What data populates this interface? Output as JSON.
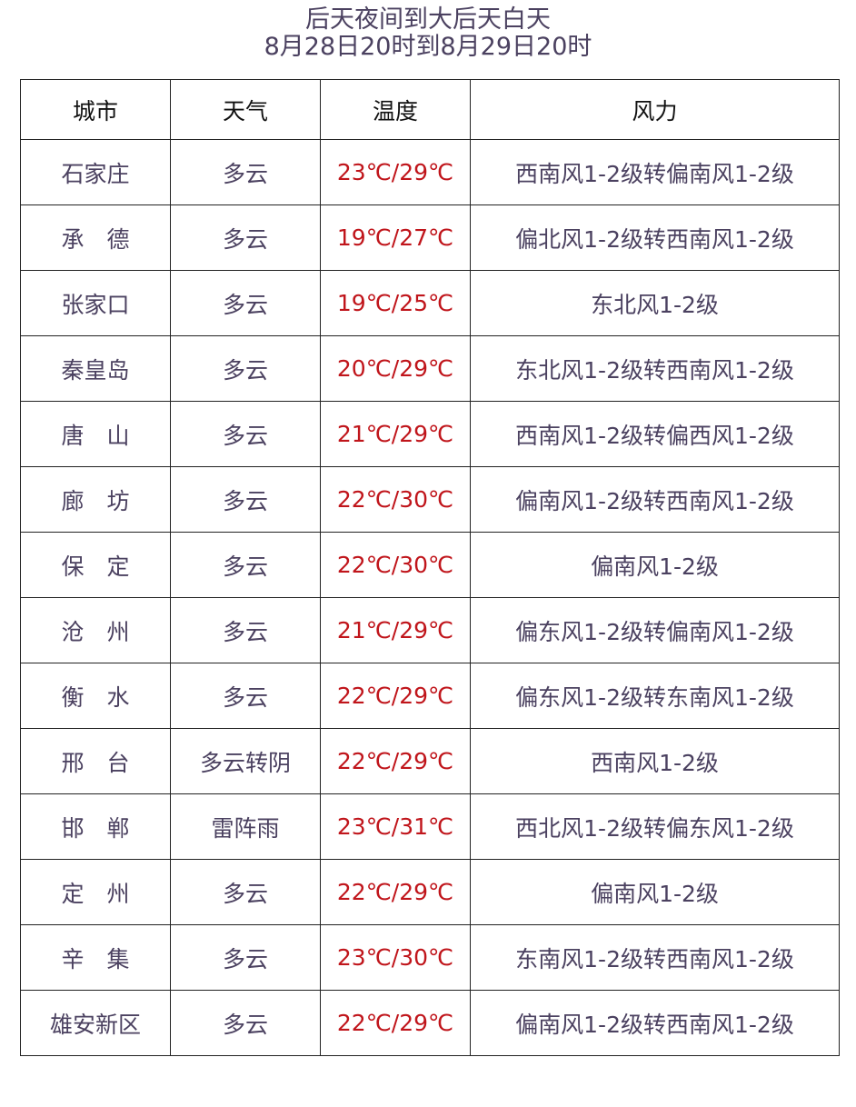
{
  "title": "后天夜间到大后天白天",
  "subtitle": "8月28日20时到8月29日20时",
  "colors": {
    "text": "#4b4160",
    "temperature": "#c0151b",
    "header": "#111111"
  },
  "table": {
    "headers": [
      "城市",
      "天气",
      "温度",
      "风力"
    ],
    "rows": [
      [
        "石家庄",
        "多云",
        "23℃/29℃",
        "西南风1-2级转偏南风1-2级"
      ],
      [
        "承　德",
        "多云",
        "19℃/27℃",
        "偏北风1-2级转西南风1-2级"
      ],
      [
        "张家口",
        "多云",
        "19℃/25℃",
        "东北风1-2级"
      ],
      [
        "秦皇岛",
        "多云",
        "20℃/29℃",
        "东北风1-2级转西南风1-2级"
      ],
      [
        "唐　山",
        "多云",
        "21℃/29℃",
        "西南风1-2级转偏西风1-2级"
      ],
      [
        "廊　坊",
        "多云",
        "22℃/30℃",
        "偏南风1-2级转西南风1-2级"
      ],
      [
        "保　定",
        "多云",
        "22℃/30℃",
        "偏南风1-2级"
      ],
      [
        "沧　州",
        "多云",
        "21℃/29℃",
        "偏东风1-2级转偏南风1-2级"
      ],
      [
        "衡　水",
        "多云",
        "22℃/29℃",
        "偏东风1-2级转东南风1-2级"
      ],
      [
        "邢　台",
        "多云转阴",
        "22℃/29℃",
        "西南风1-2级"
      ],
      [
        "邯　郸",
        "雷阵雨",
        "23℃/31℃",
        "西北风1-2级转偏东风1-2级"
      ],
      [
        "定　州",
        "多云",
        "22℃/29℃",
        "偏南风1-2级"
      ],
      [
        "辛　集",
        "多云",
        "23℃/30℃",
        "东南风1-2级转西南风1-2级"
      ],
      [
        "雄安新区",
        "多云",
        "22℃/29℃",
        "偏南风1-2级转西南风1-2级"
      ]
    ]
  }
}
